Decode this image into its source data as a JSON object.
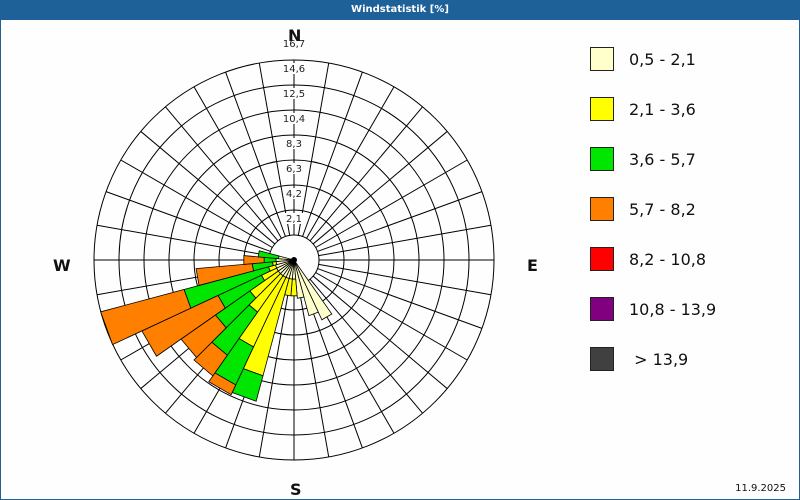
{
  "title": "Windstatistik [%]",
  "date": "11.9.2025",
  "compass": {
    "n": "N",
    "e": "E",
    "s": "S",
    "w": "W"
  },
  "legend": [
    {
      "label": "0,5 - 2,1",
      "color": "#ffffcc"
    },
    {
      "label": "2,1 - 3,6",
      "color": "#ffff00"
    },
    {
      "label": "3,6 - 5,7",
      "color": "#00e600"
    },
    {
      "label": "5,7 - 8,2",
      "color": "#ff8000"
    },
    {
      "label": "8,2 - 10,8",
      "color": "#ff0000"
    },
    {
      "label": "10,8 - 13,9",
      "color": "#800080"
    },
    {
      "label": " > 13,9",
      "color": "#404040"
    }
  ],
  "chart_data": {
    "type": "wind-rose",
    "title": "Windstatistik [%]",
    "radial_ticks": [
      "2,1",
      "4,2",
      "6,3",
      "8,3",
      "10,4",
      "12,5",
      "14,6",
      "16,7"
    ],
    "sector_width_deg": 10,
    "series_names": [
      "0,5 - 2,1",
      "2,1 - 3,6",
      "3,6 - 5,7",
      "5,7 - 8,2",
      "8,2 - 10,8",
      "10,8 - 13,9",
      "> 13,9"
    ],
    "petals": [
      {
        "dir": 150,
        "cum": [
          4.5,
          4.5,
          4.5,
          4.5
        ]
      },
      {
        "dir": 160,
        "cum": [
          3.8,
          3.8,
          3.8,
          3.8
        ]
      },
      {
        "dir": 170,
        "cum": [
          2.2,
          2.2,
          2.2,
          2.2
        ]
      },
      {
        "dir": 180,
        "cum": [
          0.6,
          2.0,
          2.0,
          2.0
        ]
      },
      {
        "dir": 190,
        "cum": [
          0.6,
          2.0,
          2.0,
          2.0
        ]
      },
      {
        "dir": 200,
        "cum": [
          0.6,
          9.0,
          11.2,
          11.2
        ]
      },
      {
        "dir": 210,
        "cum": [
          0.6,
          7.0,
          10.5,
          11.4
        ]
      },
      {
        "dir": 220,
        "cum": [
          0.6,
          4.3,
          8.7,
          10.8
        ]
      },
      {
        "dir": 230,
        "cum": [
          0.6,
          3.5,
          7.0,
          10.5
        ]
      },
      {
        "dir": 240,
        "cum": [
          0.6,
          2.0,
          6.0,
          13.0
        ]
      },
      {
        "dir": 250,
        "cum": [
          0.6,
          1.2,
          8.5,
          15.7
        ]
      },
      {
        "dir": 260,
        "cum": [
          0.5,
          0.8,
          2.5,
          7.2
        ]
      },
      {
        "dir": 270,
        "cum": [
          0.5,
          0.5,
          1.5,
          3.2
        ]
      },
      {
        "dir": 280,
        "cum": [
          0.3,
          0.3,
          2.0,
          2.0
        ]
      }
    ]
  }
}
